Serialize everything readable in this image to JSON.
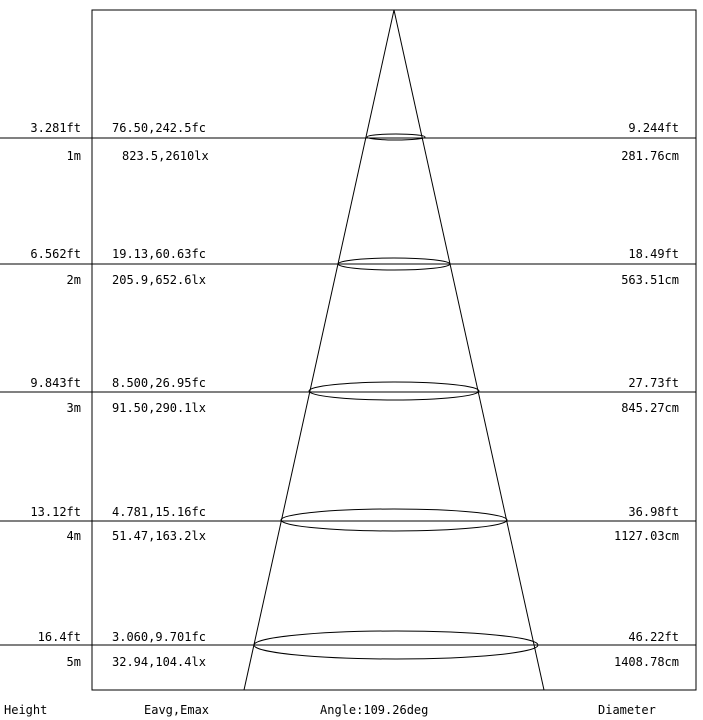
{
  "footer": {
    "height_label": "Height",
    "illuminance_label": "Eavg,Emax",
    "angle_label": "Angle:109.26deg",
    "diameter_label": "Diameter"
  },
  "levels": [
    {
      "height_ft": "3.281ft",
      "height_m": "1m",
      "illum_fc": "76.50,242.5fc",
      "illum_lx": "823.5,2610lx",
      "diameter_ft": "9.244ft",
      "diameter_cm": "281.76cm"
    },
    {
      "height_ft": "6.562ft",
      "height_m": "2m",
      "illum_fc": "19.13,60.63fc",
      "illum_lx": "205.9,652.6lx",
      "diameter_ft": "18.49ft",
      "diameter_cm": "563.51cm"
    },
    {
      "height_ft": "9.843ft",
      "height_m": "3m",
      "illum_fc": "8.500,26.95fc",
      "illum_lx": "91.50,290.1lx",
      "diameter_ft": "27.73ft",
      "diameter_cm": "845.27cm"
    },
    {
      "height_ft": "13.12ft",
      "height_m": "4m",
      "illum_fc": "4.781,15.16fc",
      "illum_lx": "51.47,163.2lx",
      "diameter_ft": "36.98ft",
      "diameter_cm": "1127.03cm"
    },
    {
      "height_ft": "16.4ft",
      "height_m": "5m",
      "illum_fc": "3.060,9.701fc",
      "illum_lx": "32.94,104.4lx",
      "diameter_ft": "46.22ft",
      "diameter_cm": "1408.78cm"
    }
  ],
  "colors": {
    "line": "#000000",
    "background": "#ffffff"
  }
}
